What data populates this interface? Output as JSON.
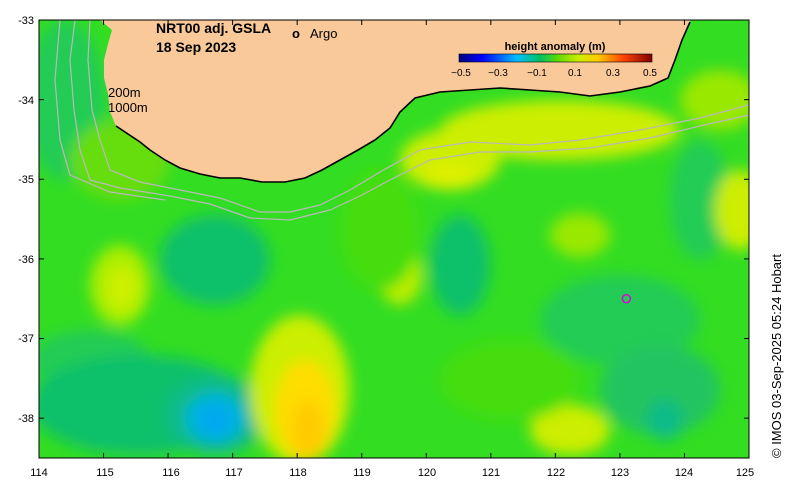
{
  "map": {
    "title_line1": "NRT00 adj. GSLA",
    "title_line2": "18 Sep 2023",
    "legend_marker": "o",
    "legend_label": "Argo",
    "depth_label_200": "200m",
    "depth_label_1000": "1000m",
    "credit": "© IMOS 03-Sep-2025 05:24 Hobart",
    "lon_range": [
      114,
      125
    ],
    "lat_range": [
      -38.5,
      -33
    ],
    "x_ticks": [
      "114",
      "115",
      "116",
      "117",
      "118",
      "119",
      "120",
      "121",
      "122",
      "123",
      "124",
      "125"
    ],
    "y_ticks": [
      "-33",
      "-34",
      "-35",
      "-36",
      "-37",
      "-38"
    ],
    "land_color": "#f9c99a",
    "argo_color": "#e000e0",
    "colorbar": {
      "title": "height anomaly (m)",
      "ticks": [
        "−0.5",
        "−0.3",
        "−0.1",
        "0.1",
        "0.3",
        "0.5"
      ],
      "range": [
        -0.5,
        0.5
      ]
    },
    "argo_float": {
      "lon": 123.1,
      "lat": -36.5
    }
  }
}
